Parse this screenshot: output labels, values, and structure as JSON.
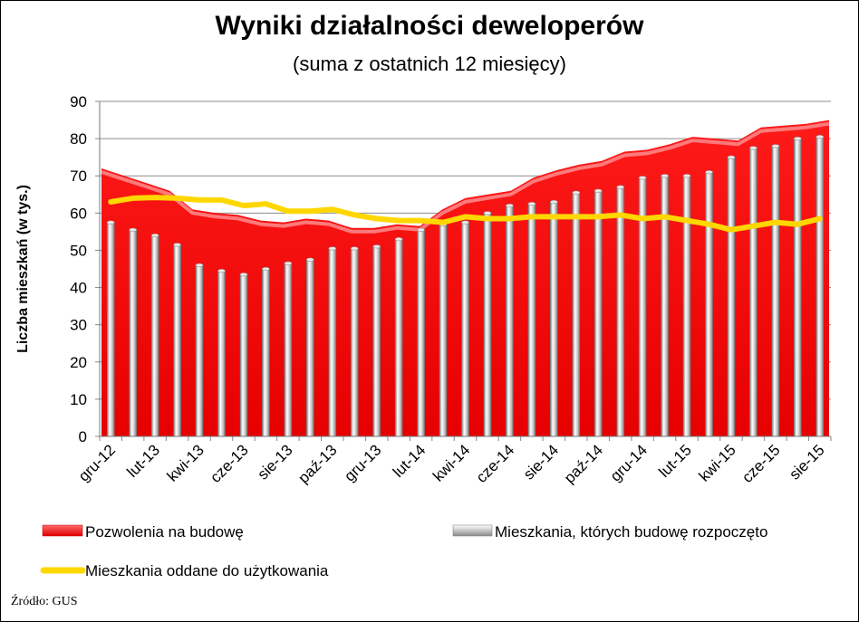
{
  "chart_data": {
    "type": "bar",
    "title": "Wyniki działalności deweloperów",
    "subtitle": "(suma z ostatnich 12 miesięcy)",
    "ylabel": "Liczba mieszkań (w tys.)",
    "xlabel": "",
    "ylim": [
      0,
      90
    ],
    "yticks": [
      0,
      10,
      20,
      30,
      40,
      50,
      60,
      70,
      80,
      90
    ],
    "grid": true,
    "legend_position": "bottom",
    "categories": [
      "gru-12",
      "sty-13",
      "lut-13",
      "mar-13",
      "kwi-13",
      "maj-13",
      "cze-13",
      "lip-13",
      "sie-13",
      "wrz-13",
      "paź-13",
      "lis-13",
      "gru-13",
      "sty-14",
      "lut-14",
      "mar-14",
      "kwi-14",
      "maj-14",
      "cze-14",
      "lip-14",
      "sie-14",
      "wrz-14",
      "paź-14",
      "lis-14",
      "gru-14",
      "sty-15",
      "lut-15",
      "mar-15",
      "kwi-15",
      "maj-15",
      "cze-15",
      "lip-15",
      "sie-15"
    ],
    "tick_labels": [
      "gru-12",
      "",
      "lut-13",
      "",
      "kwi-13",
      "",
      "cze-13",
      "",
      "sie-13",
      "",
      "paź-13",
      "",
      "gru-13",
      "",
      "lut-14",
      "",
      "kwi-14",
      "",
      "cze-14",
      "",
      "sie-14",
      "",
      "paź-14",
      "",
      "gru-14",
      "",
      "lut-15",
      "",
      "kwi-15",
      "",
      "cze-15",
      "",
      "sie-15"
    ],
    "series": [
      {
        "name": "Pozwolenia na budowę",
        "type": "area",
        "color": "#ff0000",
        "values": [
          72,
          70,
          68,
          66,
          61,
          60,
          59.5,
          58,
          57.5,
          58.5,
          58,
          56,
          56,
          57,
          56.5,
          61,
          64,
          65,
          66,
          69.5,
          71.5,
          73,
          74,
          76.5,
          77,
          78.5,
          80.5,
          80,
          79.5,
          83,
          83.5,
          84,
          85
        ]
      },
      {
        "name": "Mieszkania, których budowę rozpoczęto",
        "type": "bar",
        "color": "#b0b0b0",
        "values": [
          57.5,
          55.5,
          54,
          51.5,
          46,
          44.5,
          43.5,
          45,
          46.5,
          47.5,
          50.5,
          50.5,
          51,
          53,
          55.5,
          57,
          57.5,
          60,
          62,
          62.5,
          63,
          65.5,
          66,
          67,
          69.5,
          70,
          70,
          71,
          75,
          77.5,
          78,
          80,
          80.5
        ]
      },
      {
        "name": "Mieszkania oddane do użytkowania",
        "type": "line",
        "color": "#ffd700",
        "values": [
          63,
          64,
          64.2,
          64,
          63.5,
          63.5,
          62,
          62.5,
          60.5,
          60.5,
          61,
          59.5,
          58.5,
          58,
          58,
          57.5,
          59,
          58.5,
          58.5,
          59,
          59,
          59,
          59,
          59.5,
          58.5,
          59,
          58,
          57,
          55.5,
          56.5,
          57.5,
          57,
          58.5
        ]
      }
    ]
  },
  "source_note": "Źródło: GUS"
}
